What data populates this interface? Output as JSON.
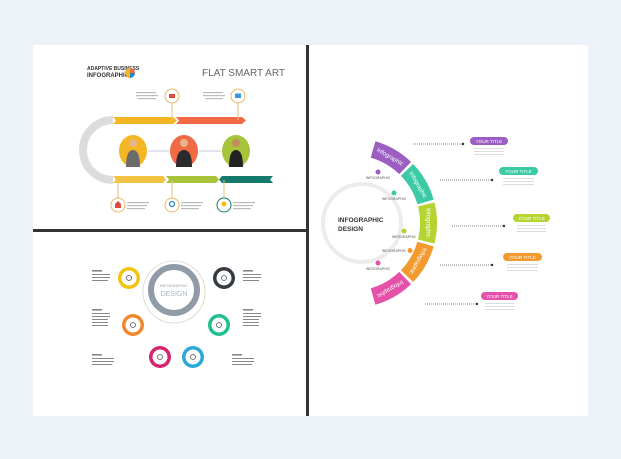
{
  "panel_top_left": {
    "logo_line1": "ADAPTIVE BUSINESS",
    "logo_line2": "INFOGRAPHICS",
    "title": "FLAT SMART ART",
    "colors": {
      "yellow": "#f4b623",
      "orange": "#ef6a45",
      "green": "#a7c43b",
      "teal": "#157a6e",
      "gray": "#dcdcdc"
    },
    "people": [
      "woman-with-tablet",
      "man-in-suit",
      "woman-arms-crossed"
    ],
    "icons": [
      "phone-icon",
      "monitor-icon",
      "house-icon",
      "magnifier-icon",
      "lightbulb-icon"
    ]
  },
  "panel_bottom_left": {
    "center_line1": "INFOGRAPHIC",
    "center_line2": "DESIGN",
    "circle_colors": [
      "#f1c40f",
      "#333a40",
      "#f0892b",
      "#1fbf8f",
      "#d6246e",
      "#2aa8d8"
    ]
  },
  "panel_right": {
    "center_line1": "INFOGRAPHIC",
    "center_line2": "DESIGN",
    "segment_label": "Infographic",
    "inner_label": "INFOGRAPHIC",
    "segments": [
      {
        "color": "#9c5ec2",
        "title": "YOUR TITLE"
      },
      {
        "color": "#3ccaa6",
        "title": "YOUR TITLE"
      },
      {
        "color": "#b6d431",
        "title": "YOUR TITLE"
      },
      {
        "color": "#f29a2e",
        "title": "YOUR TITLE"
      },
      {
        "color": "#e550a8",
        "title": "YOUR TITLE"
      }
    ]
  }
}
